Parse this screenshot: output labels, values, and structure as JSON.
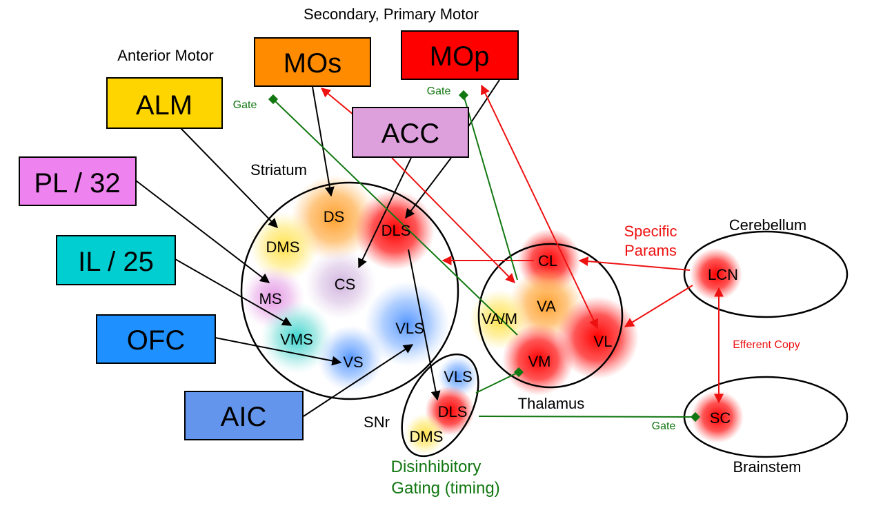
{
  "headers": {
    "secondary_primary": "Secondary, Primary Motor",
    "anterior_motor": "Anterior Motor"
  },
  "colors": {
    "ALM": "#FFD500",
    "PL": "#EE82EE",
    "IL": "#00CED1",
    "OFC": "#1E90FF",
    "AIC": "#6495ED",
    "MOs": "#FF8C00",
    "MOp": "#FF0000",
    "ACC": "#DDA0DD",
    "arrow_black": "#000000",
    "arrow_red": "#EE1111",
    "gate_green": "#117711"
  },
  "cortex": {
    "alm": "ALM",
    "pl": "PL / 32",
    "il": "IL / 25",
    "ofc": "OFC",
    "aic": "AIC",
    "mos": "MOs",
    "mop": "MOp",
    "acc": "ACC"
  },
  "striatum": {
    "title": "Striatum",
    "ds": "DS",
    "dms": "DMS",
    "dls": "DLS",
    "cs": "CS",
    "ms": "MS",
    "vms": "VMS",
    "vls": "VLS",
    "vs": "VS"
  },
  "snr": {
    "title": "SNr",
    "vls": "VLS",
    "dls": "DLS",
    "dms": "DMS",
    "caption_line1": "Disinhibitory",
    "caption_line2": "Gating (timing)"
  },
  "thalamus": {
    "title": "Thalamus",
    "cl": "CL",
    "va": "VA",
    "vam": "VA/M",
    "vm": "VM",
    "vl": "VL"
  },
  "cerebellum": {
    "title": "Cerebellum",
    "lcn": "LCN"
  },
  "brainstem": {
    "title": "Brainstem",
    "sc": "SC"
  },
  "annotations": {
    "specific_line1": "Specific",
    "specific_line2": "Params",
    "efferent": "Efferent Copy",
    "gate_mos": "Gate",
    "gate_mop": "Gate",
    "gate_sc": "Gate"
  }
}
